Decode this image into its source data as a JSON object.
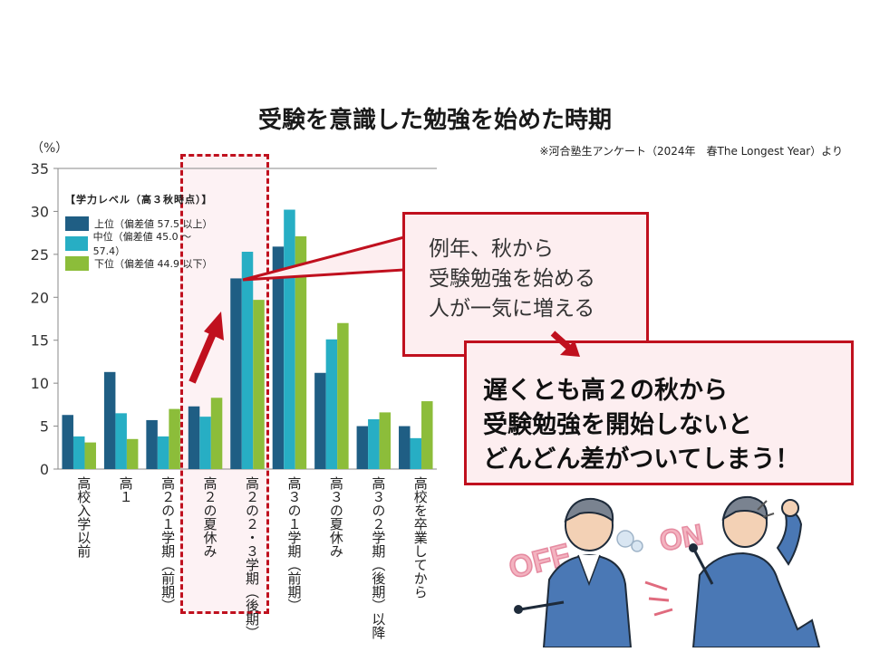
{
  "title": "受験を意識した勉強を始めた時期",
  "source": "※河合塾生アンケート（2024年　春The Longest Year）より",
  "chart_data": {
    "type": "bar",
    "unit_label": "（%）",
    "ylim": [
      0,
      35
    ],
    "yticks": [
      0,
      5,
      10,
      15,
      20,
      25,
      30,
      35
    ],
    "categories": [
      "高校入学以前",
      "高１",
      "高２の１学期（前期）",
      "高２の夏休み",
      "高２の２・３学期（後期）",
      "高３の１学期（前期）",
      "高３の夏休み",
      "高３の２学期（後期）以降",
      "高校を卒業してから"
    ],
    "legend_title": "【学力レベル（高３秋時点）】",
    "series": [
      {
        "name": "上位（偏差値 57.5 以上）",
        "color": "#1f5e84",
        "values": [
          6.3,
          11.3,
          5.7,
          7.3,
          22.2,
          25.9,
          11.2,
          5.0,
          5.0
        ]
      },
      {
        "name": "中位（偏差値 45.0 ～ 57.4）",
        "color": "#27aec4",
        "values": [
          3.8,
          6.5,
          3.8,
          6.1,
          25.3,
          30.2,
          15.1,
          5.8,
          3.6
        ]
      },
      {
        "name": "下位（偏差値 44.9 以下）",
        "color": "#8cbd3a",
        "values": [
          3.1,
          3.5,
          7.0,
          8.3,
          19.7,
          27.1,
          17.0,
          6.6,
          7.9
        ]
      }
    ],
    "grid": false,
    "legend_position": "top-left"
  },
  "callouts": {
    "first": [
      "例年、秋から",
      "受験勉強を始める",
      "人が一気に増える"
    ],
    "second": [
      "遅くとも高２の秋から",
      "受験勉強を開始しないと",
      "どんどん差がついてしまう！"
    ]
  },
  "illustration": {
    "off_label": "OFF",
    "on_label": "ON"
  },
  "colors": {
    "accent": "#c0101e",
    "callout_bg": "#fdeef0"
  }
}
